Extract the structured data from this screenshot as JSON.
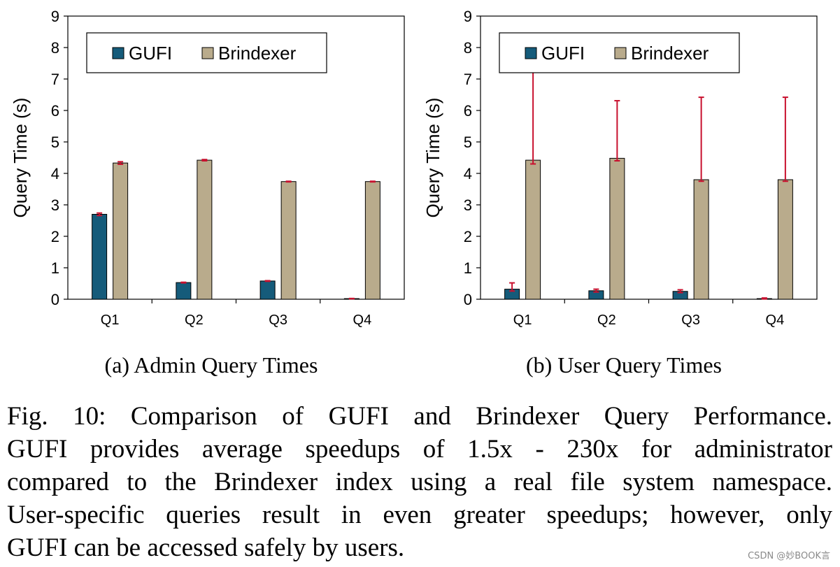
{
  "colors": {
    "gufi": "#155b7a",
    "brindexer": "#b9ab8c",
    "error_bar": "#c8102e",
    "axis": "#000000"
  },
  "chart_data": [
    {
      "type": "bar",
      "subcaption": "(a) Admin Query Times",
      "categories": [
        "Q1",
        "Q2",
        "Q3",
        "Q4"
      ],
      "ylabel": "Query Time (s)",
      "xlabel": "",
      "ylim": [
        0,
        9
      ],
      "yticks": [
        "0",
        "1",
        "2",
        "3",
        "4",
        "5",
        "6",
        "7",
        "8",
        "9"
      ],
      "legend_position": "top",
      "series": [
        {
          "name": "GUFI",
          "values": [
            2.7,
            0.53,
            0.58,
            0.02
          ],
          "err_low": [
            0.04,
            0.01,
            0.01,
            0.005
          ],
          "err_high": [
            0.04,
            0.01,
            0.01,
            0.005
          ]
        },
        {
          "name": "Brindexer",
          "values": [
            4.33,
            4.42,
            3.74,
            3.74
          ],
          "err_low": [
            0.04,
            0.02,
            0.01,
            0.01
          ],
          "err_high": [
            0.04,
            0.02,
            0.01,
            0.01
          ]
        }
      ]
    },
    {
      "type": "bar",
      "subcaption": "(b) User Query Times",
      "categories": [
        "Q1",
        "Q2",
        "Q3",
        "Q4"
      ],
      "ylabel": "Query Time (s)",
      "xlabel": "",
      "ylim": [
        0,
        9
      ],
      "yticks": [
        "0",
        "1",
        "2",
        "3",
        "4",
        "5",
        "6",
        "7",
        "8",
        "9"
      ],
      "legend_position": "top",
      "series": [
        {
          "name": "GUFI",
          "values": [
            0.32,
            0.27,
            0.25,
            0.02
          ],
          "err_low": [
            0.06,
            0.04,
            0.04,
            0.01
          ],
          "err_high": [
            0.2,
            0.05,
            0.05,
            0.02
          ]
        },
        {
          "name": "Brindexer",
          "values": [
            4.42,
            4.48,
            3.8,
            3.8
          ],
          "err_low": [
            0.12,
            0.08,
            0.05,
            0.05
          ],
          "err_high": [
            2.8,
            1.83,
            2.62,
            2.62
          ]
        }
      ]
    }
  ],
  "caption_lines": [
    "Fig. 10: Comparison of GUFI and Brindexer Query Performance.",
    "GUFI provides average speedups of 1.5x - 230x for administrator",
    "compared to the Brindexer index using a real file system namespace.",
    "User-specific queries result in even greater speedups; however, only",
    "GUFI can be accessed safely by users."
  ],
  "watermark": "CSDN @妙BOOK言"
}
